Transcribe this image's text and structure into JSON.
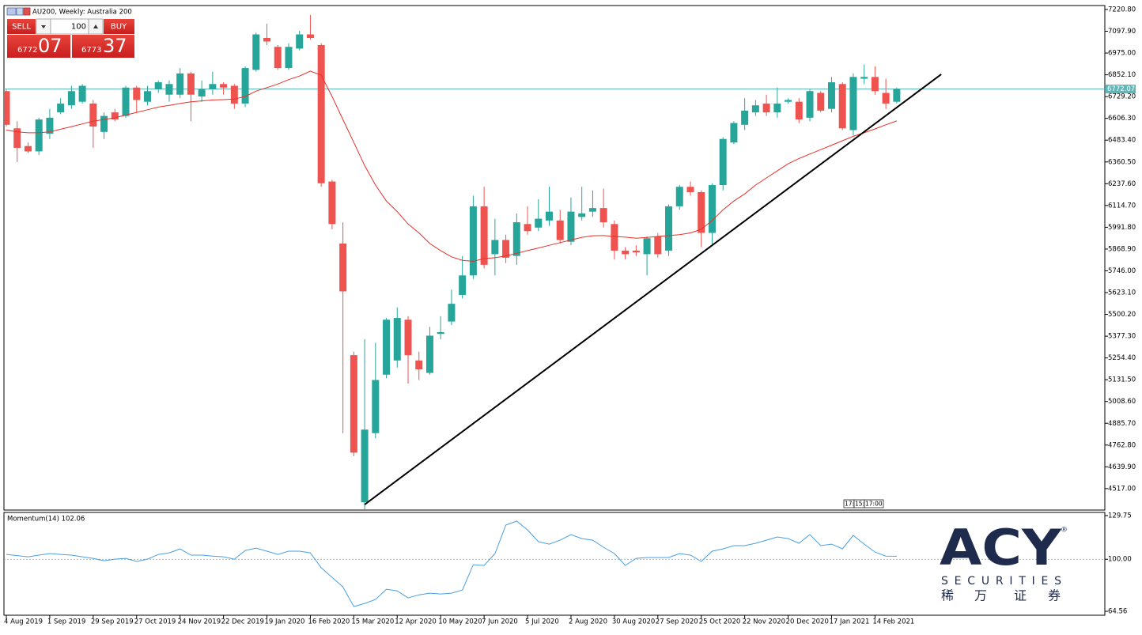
{
  "header": {
    "symbol_title": "AU200, Weekly:  Australia 200"
  },
  "trade_panel": {
    "sell_label": "SELL",
    "buy_label": "BUY",
    "volume": "100",
    "sell_price_main": "6772",
    "sell_price_big": "07",
    "buy_price_main": "6773",
    "buy_price_big": "37"
  },
  "chart_data": [
    {
      "type": "candlestick",
      "categories": [
        "4 Aug 2019",
        null,
        null,
        null,
        "1 Sep 2019",
        null,
        null,
        null,
        "29 Sep 2019",
        null,
        null,
        null,
        "27 Oct 2019",
        null,
        null,
        null,
        "24 Nov 2019",
        null,
        null,
        null,
        "22 Dec 2019",
        null,
        null,
        null,
        "19 Jan 2020",
        null,
        null,
        null,
        "16 Feb 2020",
        null,
        null,
        null,
        "15 Mar 2020",
        null,
        null,
        null,
        "12 Apr 2020",
        null,
        null,
        null,
        "10 May 2020",
        null,
        null,
        null,
        "7 Jun 2020",
        null,
        null,
        null,
        "5 Jul 2020",
        null,
        null,
        null,
        "2 Aug 2020",
        null,
        null,
        null,
        "30 Aug 2020",
        null,
        null,
        null,
        "27 Sep 2020",
        null,
        null,
        null,
        "25 Oct 2020",
        null,
        null,
        null,
        "22 Nov 2020",
        null,
        null,
        null,
        "20 Dec 2020",
        null,
        null,
        null,
        "17 Jan 2021",
        null,
        null,
        null,
        "14 Feb 2021",
        null,
        null
      ],
      "open": [
        6760,
        6550,
        6450,
        6420,
        6520,
        6640,
        6680,
        6700,
        6690,
        6530,
        6640,
        6620,
        6780,
        6700,
        6770,
        6740,
        6740,
        6860,
        6730,
        6770,
        6800,
        6790,
        6690,
        6880,
        7060,
        7010,
        6890,
        7000,
        7080,
        7020,
        6250,
        5900,
        5270,
        4440,
        4830,
        5160,
        5240,
        5470,
        5240,
        5170,
        5390,
        5460,
        5610,
        5720,
        6110,
        5840,
        5920,
        5830,
        6010,
        5990,
        6030,
        6030,
        5910,
        6050,
        6080,
        6100,
        6010,
        5860,
        5860,
        5840,
        5940,
        5860,
        6110,
        6220,
        6190,
        5960,
        6230,
        6470,
        6570,
        6640,
        6690,
        6640,
        6700,
        6700,
        6610,
        6750,
        6660,
        6800,
        6540,
        6830,
        6840,
        6750,
        6700
      ],
      "high": [
        6770,
        6590,
        6470,
        6610,
        6660,
        6720,
        6790,
        6800,
        6710,
        6640,
        6660,
        6790,
        6790,
        6790,
        6820,
        6820,
        6890,
        6870,
        6820,
        6870,
        6810,
        6800,
        6900,
        7090,
        7140,
        7020,
        7030,
        7100,
        7190,
        7030,
        6260,
        6020,
        5290,
        5360,
        5340,
        5480,
        5540,
        5490,
        5290,
        5430,
        5490,
        5640,
        5830,
        6170,
        6220,
        6040,
        5950,
        6070,
        6110,
        6150,
        6220,
        6090,
        6160,
        6220,
        6200,
        6210,
        6030,
        5880,
        5890,
        5940,
        5960,
        6120,
        6230,
        6250,
        6200,
        6240,
        6500,
        6590,
        6720,
        6710,
        6740,
        6780,
        6720,
        6720,
        6770,
        6760,
        6840,
        6810,
        6860,
        6910,
        6900,
        6830,
        6780
      ],
      "low": [
        6560,
        6360,
        6410,
        6400,
        6490,
        6630,
        6660,
        6690,
        6440,
        6490,
        6590,
        6610,
        6640,
        6680,
        6750,
        6700,
        6720,
        6590,
        6700,
        6740,
        6740,
        6660,
        6670,
        6870,
        7020,
        6880,
        6880,
        6990,
        7050,
        6220,
        5980,
        4830,
        4700,
        4400,
        4800,
        5140,
        5200,
        5110,
        5130,
        5160,
        5360,
        5440,
        5590,
        5700,
        5760,
        5720,
        5790,
        5780,
        5950,
        5970,
        6000,
        5900,
        5890,
        6030,
        6050,
        5990,
        5810,
        5810,
        5830,
        5720,
        5820,
        5830,
        6090,
        6170,
        5880,
        5890,
        6200,
        6460,
        6540,
        6620,
        6620,
        6610,
        6690,
        6580,
        6590,
        6640,
        6640,
        6540,
        6510,
        6800,
        6740,
        6660,
        6690
      ],
      "close": [
        6570,
        6440,
        6420,
        6600,
        6610,
        6690,
        6760,
        6790,
        6560,
        6620,
        6600,
        6780,
        6710,
        6760,
        6810,
        6800,
        6860,
        6740,
        6770,
        6800,
        6780,
        6690,
        6890,
        7080,
        7040,
        6890,
        7010,
        7080,
        7060,
        6240,
        6010,
        5630,
        4720,
        4850,
        5130,
        5470,
        5480,
        5270,
        5190,
        5380,
        5400,
        5560,
        5720,
        6110,
        5780,
        5920,
        5820,
        6020,
        5970,
        6040,
        6080,
        5920,
        6080,
        6070,
        6100,
        6020,
        5860,
        5840,
        5850,
        5930,
        5840,
        6110,
        6220,
        6190,
        5960,
        6230,
        6490,
        6580,
        6650,
        6680,
        6640,
        6690,
        6710,
        6600,
        6760,
        6650,
        6810,
        6550,
        6840,
        6840,
        6760,
        6690,
        6772.07
      ],
      "up_color": "#26a69a",
      "down_color": "#ef5350",
      "moving_average": {
        "color": "#e8302a",
        "values": [
          6540,
          6530,
          6525,
          6525,
          6530,
          6545,
          6560,
          6575,
          6590,
          6600,
          6610,
          6625,
          6640,
          6655,
          6670,
          6680,
          6690,
          6700,
          6705,
          6710,
          6712,
          6715,
          6730,
          6760,
          6780,
          6800,
          6825,
          6845,
          6873,
          6850,
          6730,
          6600,
          6470,
          6340,
          6230,
          6140,
          6080,
          6010,
          5960,
          5900,
          5860,
          5825,
          5805,
          5800,
          5815,
          5820,
          5830,
          5845,
          5860,
          5875,
          5890,
          5905,
          5920,
          5935,
          5944,
          5945,
          5940,
          5936,
          5930,
          5934,
          5940,
          5945,
          5950,
          5960,
          5980,
          6030,
          6090,
          6140,
          6180,
          6230,
          6270,
          6310,
          6350,
          6380,
          6405,
          6430,
          6455,
          6480,
          6505,
          6525,
          6547,
          6570,
          6592
        ]
      },
      "price_line": 6772.07,
      "price_line_color": "#5fb8b8",
      "trendline": {
        "color": "#000000",
        "x": [
          33,
          86.1
        ],
        "y": [
          4427,
          6855
        ]
      },
      "period_labels": [
        "17:",
        "15:",
        "17:00"
      ],
      "grid": false,
      "ylim": [
        4396,
        7243
      ],
      "yticks": [
        {
          "value": 7220.8,
          "label": "7220.80"
        },
        {
          "value": 7097.9,
          "label": "7097.90"
        },
        {
          "value": 6975,
          "label": "6975.00"
        },
        {
          "value": 6852.1,
          "label": "6852.10"
        },
        {
          "value": 6729.2,
          "label": "6729.20"
        },
        {
          "value": 6606.3,
          "label": "6606.30"
        },
        {
          "value": 6483.4,
          "label": "6483.40"
        },
        {
          "value": 6360.5,
          "label": "6360.50"
        },
        {
          "value": 6237.6,
          "label": "6237.60"
        },
        {
          "value": 6114.7,
          "label": "6114.70"
        },
        {
          "value": 5991.8,
          "label": "5991.80"
        },
        {
          "value": 5868.9,
          "label": "5868.90"
        },
        {
          "value": 5746,
          "label": "5746.00"
        },
        {
          "value": 5623.1,
          "label": "5623.10"
        },
        {
          "value": 5500.2,
          "label": "5500.20"
        },
        {
          "value": 5377.3,
          "label": "5377.30"
        },
        {
          "value": 5254.4,
          "label": "5254.40"
        },
        {
          "value": 5131.5,
          "label": "5131.50"
        },
        {
          "value": 5008.6,
          "label": "5008.60"
        },
        {
          "value": 4885.7,
          "label": "4885.70"
        },
        {
          "value": 4762.8,
          "label": "4762.80"
        },
        {
          "value": 4639.9,
          "label": "4639.90"
        },
        {
          "value": 4517,
          "label": "4517.00"
        }
      ]
    },
    {
      "type": "line",
      "label": "Momentum(14) 102.06",
      "color": "#4a9fe0",
      "values": [
        103.3,
        102.5,
        101.7,
        102.8,
        103.9,
        103.3,
        102.8,
        101.7,
        100.6,
        99.0,
        100.1,
        100.6,
        98.5,
        100.1,
        103.3,
        104.4,
        107.1,
        102.8,
        102.8,
        102.2,
        101.7,
        100.1,
        106.0,
        107.6,
        105.5,
        103.3,
        105.5,
        105.5,
        104.4,
        94.2,
        87.7,
        81.2,
        67.8,
        69.9,
        72.6,
        79.6,
        78.5,
        73.7,
        75.8,
        76.9,
        76.4,
        76.9,
        79.1,
        96.3,
        95.8,
        103.9,
        123.3,
        126.0,
        120.0,
        112.0,
        110.3,
        113.0,
        116.8,
        114.1,
        113.0,
        108.2,
        103.9,
        95.8,
        100.6,
        101.2,
        101.2,
        101.2,
        103.9,
        102.8,
        98.5,
        105.5,
        107.1,
        109.3,
        109.3,
        110.9,
        113.0,
        115.2,
        114.1,
        110.9,
        116.8,
        109.3,
        110.3,
        107.1,
        116.3,
        110.3,
        104.9,
        102.2,
        102.06
      ],
      "reference_line": 100,
      "ylim": [
        61.9,
        131.9
      ],
      "yticks": [
        129.75,
        {
          "value": 100,
          "label": "100.00"
        },
        64.56
      ]
    }
  ],
  "logo": {
    "brand": "ACY",
    "registered": "®",
    "subtitle": "SECURITIES",
    "chinese": [
      "稀",
      "万",
      "证",
      "券"
    ]
  }
}
